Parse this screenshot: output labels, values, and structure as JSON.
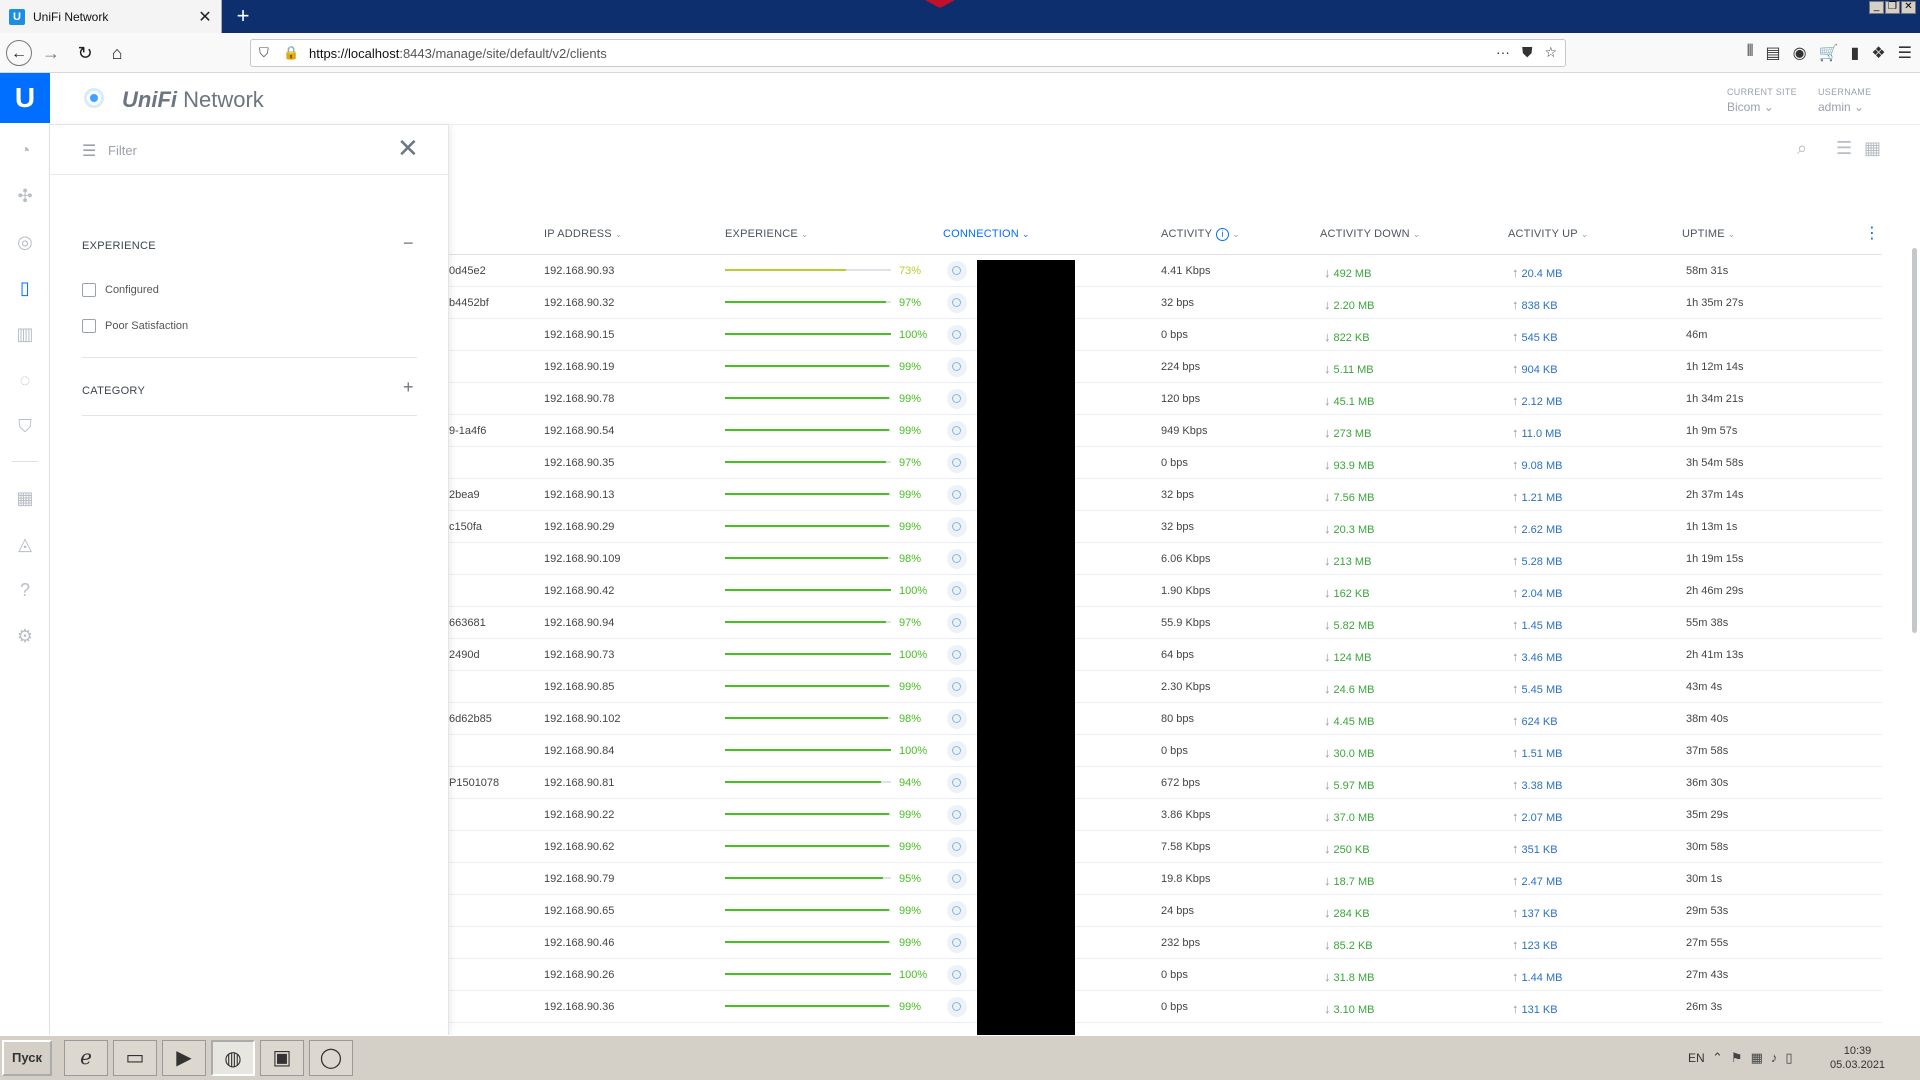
{
  "browser": {
    "tab_title": "UniFi Network",
    "tab_favicon_letter": "U",
    "url_host": "https://localhost",
    "url_path": ":8443/manage/site/default/v2/clients",
    "urlbar_more": "···"
  },
  "app": {
    "title_brand": "UniFi",
    "title_suffix": " Network",
    "logo_letter": "U",
    "current_site_label": "CURRENT SITE",
    "current_site_value": "Bicom",
    "username_label": "USERNAME",
    "username_value": "admin"
  },
  "filter": {
    "placeholder": "Filter",
    "experience_title": "EXPERIENCE",
    "experience_toggle": "−",
    "options": [
      "Configured",
      "Poor Satisfaction"
    ],
    "category_title": "CATEGORY",
    "category_toggle": "+"
  },
  "table": {
    "headers": {
      "ip": "IP ADDRESS",
      "experience": "EXPERIENCE",
      "connection": "CONNECTION",
      "activity": "ACTIVITY",
      "activity_down": "ACTIVITY DOWN",
      "activity_up": "ACTIVITY UP",
      "uptime": "UPTIME"
    },
    "rows": [
      {
        "name": "0d45e2",
        "ip": "192.168.90.93",
        "exp": 73,
        "exp_label": "73%",
        "activity": "4.41 Kbps",
        "down": "492 MB",
        "up": "20.4 MB",
        "uptime": "58m 31s"
      },
      {
        "name": "b4452bf",
        "ip": "192.168.90.32",
        "exp": 97,
        "exp_label": "97%",
        "activity": "32 bps",
        "down": "2.20 MB",
        "up": "838 KB",
        "uptime": "1h 35m 27s"
      },
      {
        "name": "",
        "ip": "192.168.90.15",
        "exp": 100,
        "exp_label": "100%",
        "activity": "0 bps",
        "down": "822 KB",
        "up": "545 KB",
        "uptime": "46m"
      },
      {
        "name": "",
        "ip": "192.168.90.19",
        "exp": 99,
        "exp_label": "99%",
        "activity": "224 bps",
        "down": "5.11 MB",
        "up": "904 KB",
        "uptime": "1h 12m 14s"
      },
      {
        "name": "",
        "ip": "192.168.90.78",
        "exp": 99,
        "exp_label": "99%",
        "activity": "120 bps",
        "down": "45.1 MB",
        "up": "2.12 MB",
        "uptime": "1h 34m 21s"
      },
      {
        "name": "9-1a4f6",
        "ip": "192.168.90.54",
        "exp": 99,
        "exp_label": "99%",
        "activity": "949 Kbps",
        "down": "273 MB",
        "up": "11.0 MB",
        "uptime": "1h 9m 57s"
      },
      {
        "name": "",
        "ip": "192.168.90.35",
        "exp": 97,
        "exp_label": "97%",
        "activity": "0 bps",
        "down": "93.9 MB",
        "up": "9.08 MB",
        "uptime": "3h 54m 58s"
      },
      {
        "name": "2bea9",
        "ip": "192.168.90.13",
        "exp": 99,
        "exp_label": "99%",
        "activity": "32 bps",
        "down": "7.56 MB",
        "up": "1.21 MB",
        "uptime": "2h 37m 14s"
      },
      {
        "name": "c150fa",
        "ip": "192.168.90.29",
        "exp": 99,
        "exp_label": "99%",
        "activity": "32 bps",
        "down": "20.3 MB",
        "up": "2.62 MB",
        "uptime": "1h 13m 1s"
      },
      {
        "name": "",
        "ip": "192.168.90.109",
        "exp": 98,
        "exp_label": "98%",
        "activity": "6.06 Kbps",
        "down": "213 MB",
        "up": "5.28 MB",
        "uptime": "1h 19m 15s"
      },
      {
        "name": "",
        "ip": "192.168.90.42",
        "exp": 100,
        "exp_label": "100%",
        "activity": "1.90 Kbps",
        "down": "162 KB",
        "up": "2.04 MB",
        "uptime": "2h 46m 29s"
      },
      {
        "name": "663681",
        "ip": "192.168.90.94",
        "exp": 97,
        "exp_label": "97%",
        "activity": "55.9 Kbps",
        "down": "5.82 MB",
        "up": "1.45 MB",
        "uptime": "55m 38s"
      },
      {
        "name": "2490d",
        "ip": "192.168.90.73",
        "exp": 100,
        "exp_label": "100%",
        "activity": "64 bps",
        "down": "124 MB",
        "up": "3.46 MB",
        "uptime": "2h 41m 13s"
      },
      {
        "name": "",
        "ip": "192.168.90.85",
        "exp": 99,
        "exp_label": "99%",
        "activity": "2.30 Kbps",
        "down": "24.6 MB",
        "up": "5.45 MB",
        "uptime": "43m 4s"
      },
      {
        "name": "6d62b85",
        "ip": "192.168.90.102",
        "exp": 98,
        "exp_label": "98%",
        "activity": "80 bps",
        "down": "4.45 MB",
        "up": "624 KB",
        "uptime": "38m 40s"
      },
      {
        "name": "",
        "ip": "192.168.90.84",
        "exp": 100,
        "exp_label": "100%",
        "activity": "0 bps",
        "down": "30.0 MB",
        "up": "1.51 MB",
        "uptime": "37m 58s"
      },
      {
        "name": "P1501078",
        "ip": "192.168.90.81",
        "exp": 94,
        "exp_label": "94%",
        "activity": "672 bps",
        "down": "5.97 MB",
        "up": "3.38 MB",
        "uptime": "36m 30s"
      },
      {
        "name": "",
        "ip": "192.168.90.22",
        "exp": 99,
        "exp_label": "99%",
        "activity": "3.86 Kbps",
        "down": "37.0 MB",
        "up": "2.07 MB",
        "uptime": "35m 29s"
      },
      {
        "name": "",
        "ip": "192.168.90.62",
        "exp": 99,
        "exp_label": "99%",
        "activity": "7.58 Kbps",
        "down": "250 KB",
        "up": "351 KB",
        "uptime": "30m 58s"
      },
      {
        "name": "",
        "ip": "192.168.90.79",
        "exp": 95,
        "exp_label": "95%",
        "activity": "19.8 Kbps",
        "down": "18.7 MB",
        "up": "2.47 MB",
        "uptime": "30m 1s"
      },
      {
        "name": "",
        "ip": "192.168.90.65",
        "exp": 99,
        "exp_label": "99%",
        "activity": "24 bps",
        "down": "284 KB",
        "up": "137 KB",
        "uptime": "29m 53s"
      },
      {
        "name": "",
        "ip": "192.168.90.46",
        "exp": 99,
        "exp_label": "99%",
        "activity": "232 bps",
        "down": "85.2 KB",
        "up": "123 KB",
        "uptime": "27m 55s"
      },
      {
        "name": "",
        "ip": "192.168.90.26",
        "exp": 100,
        "exp_label": "100%",
        "activity": "0 bps",
        "down": "31.8 MB",
        "up": "1.44 MB",
        "uptime": "27m 43s"
      },
      {
        "name": "",
        "ip": "192.168.90.36",
        "exp": 99,
        "exp_label": "99%",
        "activity": "0 bps",
        "down": "3.10 MB",
        "up": "131 KB",
        "uptime": "26m 3s"
      }
    ]
  },
  "colors": {
    "accent": "#006fff",
    "exp_good": "#47c11f",
    "exp_warn": "#b7cf2e",
    "down": "#3ba53b",
    "up": "#2b71c0"
  },
  "taskbar": {
    "start_label": "Пуск",
    "language": "EN",
    "time": "10:39",
    "date": "05.03.2021"
  }
}
